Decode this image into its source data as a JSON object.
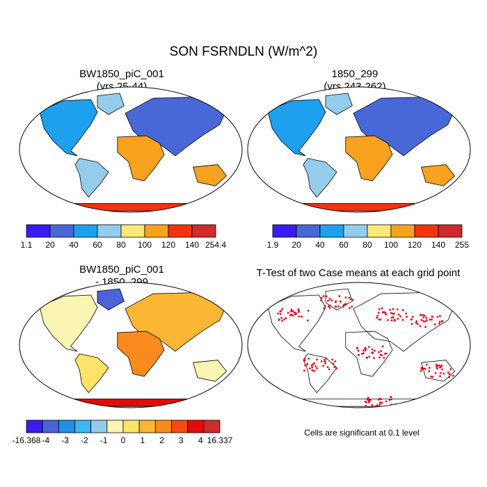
{
  "figure": {
    "title": "SON FSRNDLN (W/m^2)",
    "footnote": "Cells are significant at 0.1 level"
  },
  "colors": {
    "land_ocean_outline": "#000000",
    "significance": "#e8001c",
    "abs_scale": [
      "#3a1cf0",
      "#4868d8",
      "#1ea0ee",
      "#96cceb",
      "#fbe77a",
      "#f9a21f",
      "#f2340e",
      "#cf2a2c"
    ],
    "diff_scale": [
      "#3a1cf0",
      "#4a63da",
      "#1f90e8",
      "#3ab8f0",
      "#96cceb",
      "#fbf5b3",
      "#fde36a",
      "#fbb633",
      "#f98a1d",
      "#f74a12",
      "#e30a0a",
      "#cf2a2c"
    ]
  },
  "panels": [
    {
      "id": "case1",
      "kind": "absolute",
      "title_line1": "BW1850_piC_001",
      "title_line2": "(yrs 25-44)",
      "colorbar_labels": [
        "1.1",
        "20",
        "40",
        "60",
        "80",
        "100",
        "120",
        "140",
        "254.4"
      ]
    },
    {
      "id": "case2",
      "kind": "absolute",
      "title_line1": "1850_299",
      "title_line2": "(yrs 243-262)",
      "colorbar_labels": [
        "1.9",
        "20",
        "40",
        "60",
        "80",
        "100",
        "120",
        "140",
        "255"
      ]
    },
    {
      "id": "difference",
      "kind": "difference",
      "title_line1": "BW1850_piC_001",
      "title_line2": "- 1850_299",
      "colorbar_labels": [
        "-16.368",
        "-4",
        "-3",
        "-2",
        "-1",
        "0",
        "1",
        "2",
        "3",
        "4",
        "16.337"
      ]
    },
    {
      "id": "ttest",
      "kind": "significance",
      "title_line1": "T-Test of two Case means at each grid point",
      "title_line2": ""
    }
  ]
}
